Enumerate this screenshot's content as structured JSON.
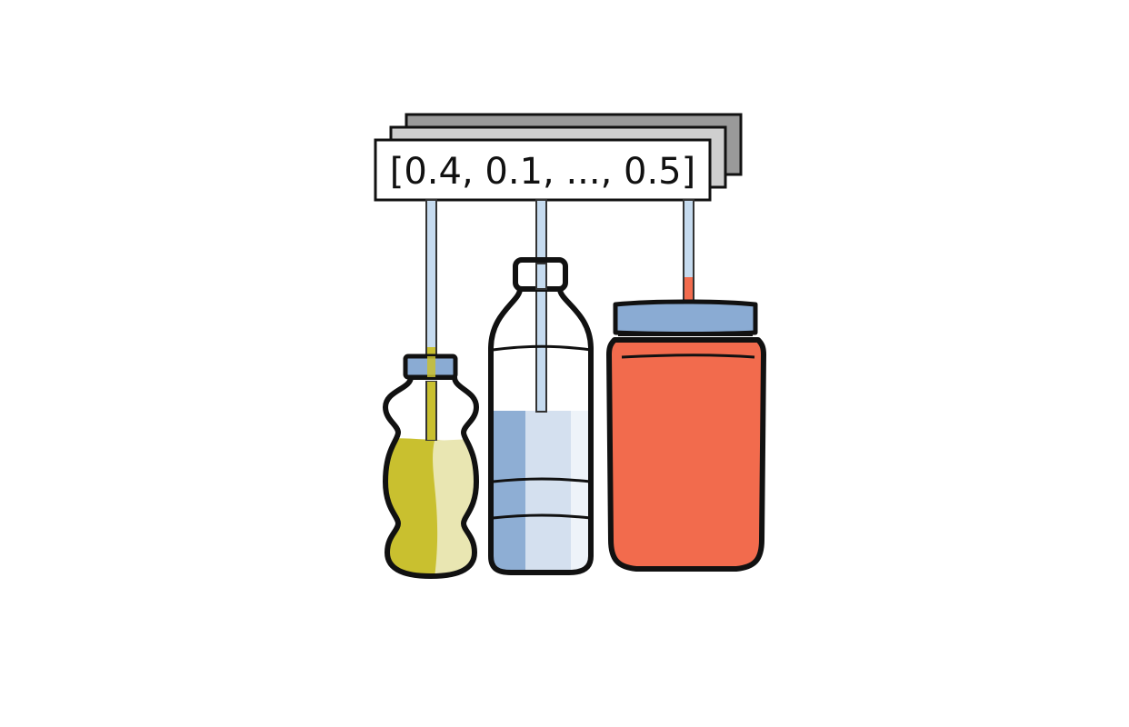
{
  "vector_text": "[0.4, 0.1, ..., 0.5]",
  "colors": {
    "outline": "#111111",
    "card_back_1": "#9a9a9a",
    "card_back_2": "#cfcfcf",
    "card_front": "#ffffff",
    "straw": "#c6dbef",
    "cap_blue": "#8aabd3",
    "juice_dark": "#c9c02f",
    "juice_light": "#e9e6b2",
    "water_dark": "#8eaed4",
    "water_light": "#d4e0ef",
    "jar_orange": "#f26b4d"
  },
  "containers": [
    {
      "name": "juice-bottle",
      "liquid": "yellow juice"
    },
    {
      "name": "water-bottle",
      "liquid": "water"
    },
    {
      "name": "jar",
      "liquid": "orange contents"
    }
  ]
}
